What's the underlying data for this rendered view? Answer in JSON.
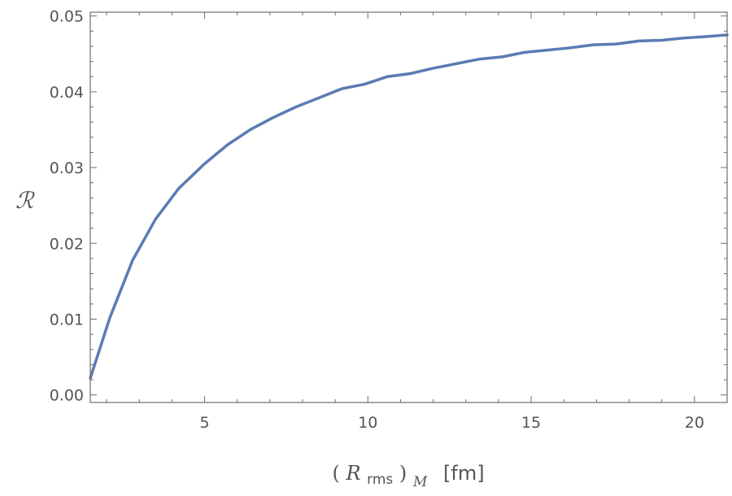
{
  "chart_data": {
    "type": "line",
    "title": "",
    "xlabel": {
      "open": "(",
      "var": "R",
      "sub": "rms",
      "close": ")",
      "sub2": "M",
      "unit": "[fm]"
    },
    "ylabel": "ℛ",
    "xlim": [
      1.5,
      21
    ],
    "ylim": [
      -0.001,
      0.0505
    ],
    "xticks": [
      5,
      10,
      15,
      20
    ],
    "xtick_labels": [
      "5",
      "10",
      "15",
      "20"
    ],
    "yticks": [
      0.0,
      0.01,
      0.02,
      0.03,
      0.04,
      0.05
    ],
    "ytick_labels": [
      "0.00",
      "0.01",
      "0.02",
      "0.03",
      "0.04",
      "0.05"
    ],
    "grid": false,
    "series_color": "#5b7bb3",
    "series": [
      {
        "x": [
          1.5,
          2.1,
          2.8,
          3.5,
          4.2,
          5.0,
          5.7,
          6.4,
          7.1,
          7.8,
          8.5,
          9.2,
          9.9,
          10.6,
          11.3,
          12.0,
          12.7,
          13.4,
          14.1,
          14.8,
          15.5,
          16.2,
          16.9,
          17.6,
          18.3,
          19.0,
          19.7,
          20.4,
          21.0
        ],
        "y": [
          0.0022,
          0.0102,
          0.0178,
          0.0232,
          0.0272,
          0.0305,
          0.033,
          0.035,
          0.0366,
          0.038,
          0.0392,
          0.0404,
          0.041,
          0.042,
          0.0424,
          0.0431,
          0.0437,
          0.0443,
          0.0446,
          0.0452,
          0.0455,
          0.0458,
          0.0462,
          0.0463,
          0.0467,
          0.0468,
          0.0471,
          0.0473,
          0.0475
        ]
      }
    ]
  }
}
